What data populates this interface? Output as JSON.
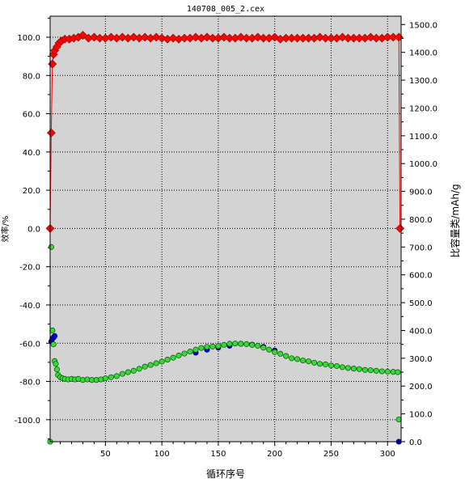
{
  "chart_data": {
    "type": "scatter",
    "title": "140708_005_2.cex",
    "xlabel": "循环序号",
    "ylabel_left": "效率/%",
    "ylabel_right": "比容量类/mAh/g",
    "xlim": [
      1,
      312
    ],
    "ylim_left": [
      -111.5,
      111
    ],
    "ylim_right": [
      0,
      1530
    ],
    "x_ticks": [
      50,
      100,
      150,
      200,
      250,
      300
    ],
    "y_left_ticks": [
      "100.0",
      "80.0",
      "60.0",
      "40.0",
      "20.0",
      "0.0",
      "-20.0",
      "-40.0",
      "-60.0",
      "-80.0",
      "-100.0"
    ],
    "y_left_tick_values": [
      100,
      80,
      60,
      40,
      20,
      0,
      -20,
      -40,
      -60,
      -80,
      -100
    ],
    "y_right_ticks": [
      "1500.0",
      "1400.0",
      "1300.0",
      "1200.0",
      "1100.0",
      "1000.0",
      "900.0",
      "800.0",
      "700.0",
      "600.0",
      "500.0",
      "400.0",
      "300.0",
      "200.0",
      "100.0",
      "0.0"
    ],
    "y_right_tick_values": [
      1500,
      1400,
      1300,
      1200,
      1100,
      1000,
      900,
      800,
      700,
      600,
      500,
      400,
      300,
      200,
      100,
      0
    ],
    "grid": true,
    "series": [
      {
        "role": "efficiency",
        "axis": "left",
        "color": "#ff0000",
        "marker": "diamond",
        "x": [
          1,
          2,
          3,
          4,
          5,
          7,
          9,
          11,
          14,
          18,
          22,
          26,
          30,
          35,
          40,
          45,
          50,
          55,
          60,
          65,
          70,
          75,
          80,
          85,
          90,
          95,
          100,
          105,
          110,
          115,
          120,
          125,
          130,
          135,
          140,
          145,
          150,
          155,
          160,
          165,
          170,
          175,
          180,
          185,
          190,
          195,
          200,
          205,
          210,
          215,
          220,
          225,
          230,
          235,
          240,
          245,
          250,
          255,
          260,
          265,
          270,
          275,
          280,
          285,
          290,
          295,
          300,
          305,
          310,
          311
        ],
        "y": [
          0,
          50,
          86,
          91,
          93,
          95,
          97,
          98,
          99,
          99,
          99.5,
          100,
          101,
          99.5,
          100,
          99.5,
          99.5,
          100,
          99.5,
          100,
          99.5,
          100,
          99.5,
          100,
          99.5,
          100,
          99.5,
          99,
          99.5,
          99,
          99.5,
          99.5,
          100,
          99.5,
          100,
          99.5,
          99.5,
          100,
          99.5,
          99.5,
          100,
          99.5,
          99.5,
          100,
          99.5,
          99.5,
          100,
          99,
          99.5,
          99.5,
          99.5,
          99.5,
          99.5,
          99.5,
          100,
          99.5,
          99.5,
          99.5,
          100,
          99.5,
          99.5,
          99.5,
          99.5,
          100,
          99.5,
          99.5,
          100,
          100,
          100,
          0
        ]
      },
      {
        "role": "capacity",
        "axis": "right",
        "color": "#33dd33",
        "marker": "circle",
        "x": [
          1,
          2,
          3,
          4,
          5,
          6,
          7,
          8,
          10,
          12,
          14,
          17,
          20,
          23,
          26,
          30,
          34,
          38,
          42,
          46,
          50,
          55,
          60,
          65,
          70,
          75,
          80,
          85,
          90,
          95,
          100,
          105,
          110,
          115,
          120,
          125,
          130,
          135,
          140,
          145,
          150,
          155,
          160,
          165,
          170,
          175,
          180,
          185,
          190,
          195,
          200,
          205,
          210,
          215,
          220,
          225,
          230,
          235,
          240,
          245,
          250,
          255,
          260,
          265,
          270,
          275,
          280,
          285,
          290,
          295,
          300,
          305,
          309,
          310
        ],
        "y": [
          0,
          700,
          400,
          350,
          290,
          280,
          260,
          240,
          232,
          228,
          226,
          224,
          226,
          224,
          226,
          222,
          224,
          222,
          222,
          224,
          228,
          232,
          236,
          244,
          250,
          255,
          262,
          270,
          276,
          282,
          288,
          295,
          302,
          310,
          317,
          324,
          331,
          337,
          341,
          342,
          344,
          348,
          352,
          353,
          352,
          351,
          348,
          345,
          338,
          331,
          322,
          316,
          308,
          300,
          297,
          292,
          289,
          284,
          280,
          278,
          274,
          272,
          268,
          265,
          263,
          261,
          258,
          257,
          255,
          253,
          252,
          251,
          250,
          80
        ]
      },
      {
        "role": "capacity-2",
        "axis": "right",
        "color": "#0000cc",
        "marker": "circle",
        "x": [
          2,
          3,
          4,
          5,
          130,
          140,
          150,
          160,
          170,
          180,
          190,
          200,
          310
        ],
        "y": [
          360,
          370,
          375,
          380,
          320,
          331,
          338,
          345,
          352,
          349,
          341,
          328,
          0
        ]
      }
    ]
  }
}
